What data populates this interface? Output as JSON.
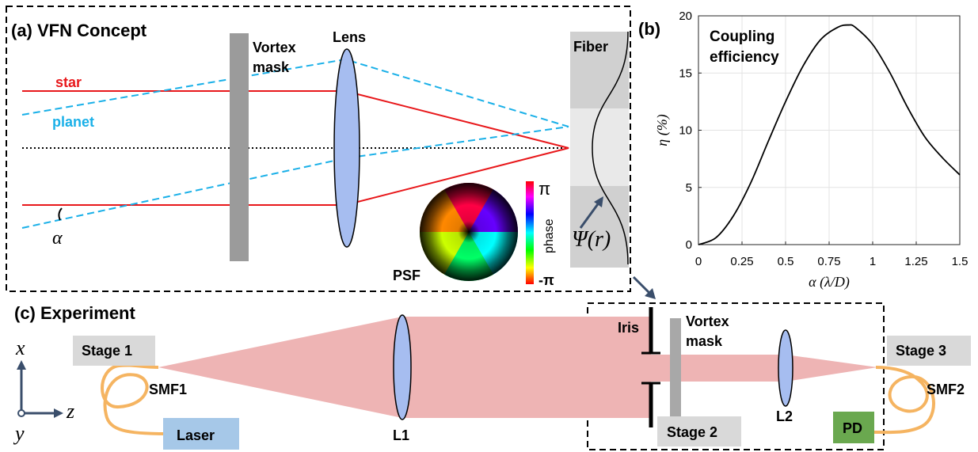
{
  "panel_a": {
    "title": "(a) VFN Concept",
    "vortex_mask": [
      "Vortex",
      "mask"
    ],
    "lens": "Lens",
    "fiber": "Fiber",
    "star": "star",
    "planet": "planet",
    "alpha": "α",
    "psf": "PSF",
    "phase_label": "phase",
    "phase_max": "π",
    "phase_min": "-π",
    "mode_label": "Ψ(r)",
    "colors": {
      "star": "#e8181b",
      "planet": "#1ab0e8",
      "lens": "#a6bdf0",
      "mask": "#9b9b9b"
    }
  },
  "panel_b": {
    "title": "(b)"
  },
  "chart_data": {
    "type": "line",
    "title": "Coupling efficiency",
    "xlabel": "α (λ/D)",
    "ylabel": "η (%)",
    "xlim": [
      0,
      1.5
    ],
    "ylim": [
      0,
      20
    ],
    "xticks": [
      0,
      0.25,
      0.5,
      0.75,
      1,
      1.25,
      1.5
    ],
    "xtick_labels": [
      "0",
      "0.25",
      "0.5",
      "0.75",
      "1",
      "1.25",
      "1.5"
    ],
    "yticks": [
      0,
      5,
      10,
      15,
      20
    ],
    "ytick_labels": [
      "0",
      "5",
      "10",
      "15",
      "20"
    ],
    "grid": true,
    "series": [
      {
        "x": [
          0,
          0.1,
          0.2,
          0.3,
          0.4,
          0.5,
          0.6,
          0.7,
          0.8,
          0.86,
          0.9,
          1.0,
          1.1,
          1.2,
          1.3,
          1.4,
          1.5
        ],
        "y": [
          0,
          0.6,
          2.5,
          5.4,
          9.0,
          12.5,
          15.6,
          17.9,
          19.0,
          19.2,
          19.0,
          17.5,
          15.0,
          12.0,
          9.4,
          7.6,
          6.1
        ]
      }
    ]
  },
  "panel_c": {
    "title": "(c) Experiment",
    "axis_x": "x",
    "axis_y": "y",
    "axis_z": "z",
    "stage1": "Stage 1",
    "stage2": "Stage 2",
    "stage3": "Stage 3",
    "smf1": "SMF1",
    "smf2": "SMF2",
    "laser": "Laser",
    "pd": "PD",
    "l1": "L1",
    "l2": "L2",
    "iris": "Iris",
    "vortex_mask": [
      "Vortex",
      "mask"
    ],
    "colors": {
      "beam": "#eeb4b4",
      "fiber": "#f5b461",
      "laser": "#a6c8e8",
      "pd": "#6aa84f",
      "stage": "#d9d9d9"
    }
  }
}
